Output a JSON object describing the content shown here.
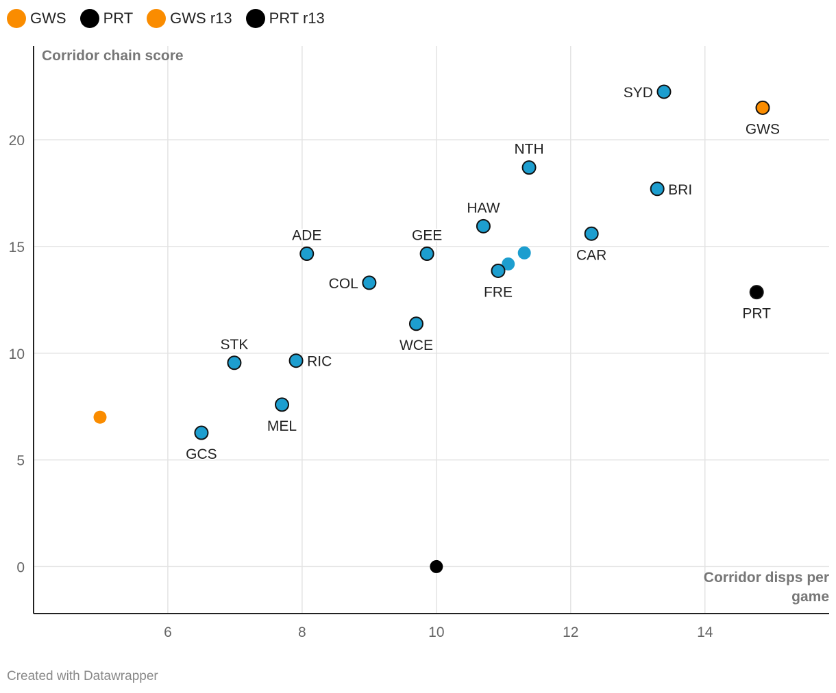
{
  "legend": [
    {
      "label": "GWS",
      "color": "#fa8c00"
    },
    {
      "label": "PRT",
      "color": "#000000"
    },
    {
      "label": "GWS r13",
      "color": "#fa8c00"
    },
    {
      "label": "PRT r13",
      "color": "#000000"
    }
  ],
  "footer": "Created with Datawrapper",
  "chart_data": {
    "type": "scatter",
    "ylabel": "Corridor chain score",
    "xlabel": "Corridor disps per game",
    "xlim": [
      4,
      15.85
    ],
    "ylim": [
      -2.2,
      24.4
    ],
    "xticks": [
      6,
      8,
      10,
      12,
      14
    ],
    "yticks": [
      0,
      5,
      10,
      15,
      20
    ],
    "grid": true,
    "legend_placement": "top-left",
    "colors": {
      "team": "#1d9ecf",
      "gws": "#fa8c00",
      "prt": "#000000"
    },
    "points": [
      {
        "label": "SYD",
        "x": 13.39,
        "y": 22.25,
        "color": "team",
        "label_position": "left",
        "outline": true
      },
      {
        "label": "GWS",
        "x": 14.86,
        "y": 21.5,
        "color": "gws",
        "label_position": "bottom",
        "outline": true
      },
      {
        "label": "NTH",
        "x": 11.38,
        "y": 18.7,
        "color": "team",
        "label_position": "top",
        "outline": true
      },
      {
        "label": "BRI",
        "x": 13.29,
        "y": 17.7,
        "color": "team",
        "label_position": "right",
        "outline": true
      },
      {
        "label": "HAW",
        "x": 10.7,
        "y": 15.95,
        "color": "team",
        "label_position": "top",
        "outline": true
      },
      {
        "label": "CAR",
        "x": 12.31,
        "y": 15.6,
        "color": "team",
        "label_position": "bottom",
        "outline": true
      },
      {
        "label": "ADE",
        "x": 8.07,
        "y": 14.66,
        "color": "team",
        "label_position": "top",
        "outline": true
      },
      {
        "label": "GEE",
        "x": 9.86,
        "y": 14.66,
        "color": "team",
        "label_position": "top",
        "outline": true
      },
      {
        "label": "",
        "x": 11.31,
        "y": 14.7,
        "color": "team",
        "outline": false
      },
      {
        "label": "",
        "x": 11.07,
        "y": 14.18,
        "color": "team",
        "outline": false
      },
      {
        "label": "FRE",
        "x": 10.92,
        "y": 13.86,
        "color": "team",
        "label_position": "bottom",
        "outline": true
      },
      {
        "label": "COL",
        "x": 9.0,
        "y": 13.3,
        "color": "team",
        "label_position": "left",
        "outline": true
      },
      {
        "label": "PRT",
        "x": 14.77,
        "y": 12.86,
        "color": "prt",
        "label_position": "bottom",
        "outline": true
      },
      {
        "label": "WCE",
        "x": 9.7,
        "y": 11.38,
        "color": "team",
        "label_position": "bottom",
        "outline": true
      },
      {
        "label": "STK",
        "x": 6.99,
        "y": 9.55,
        "color": "team",
        "label_position": "top",
        "outline": true
      },
      {
        "label": "RIC",
        "x": 7.91,
        "y": 9.65,
        "color": "team",
        "label_position": "right",
        "outline": true
      },
      {
        "label": "MEL",
        "x": 7.7,
        "y": 7.59,
        "color": "team",
        "label_position": "bottom",
        "outline": true
      },
      {
        "label": "GCS",
        "x": 6.5,
        "y": 6.27,
        "color": "team",
        "label_position": "bottom",
        "outline": true
      },
      {
        "label": "",
        "x": 4.99,
        "y": 7.0,
        "color": "gws",
        "outline": false
      },
      {
        "label": "",
        "x": 10.0,
        "y": 0.0,
        "color": "prt",
        "outline": false
      }
    ]
  }
}
